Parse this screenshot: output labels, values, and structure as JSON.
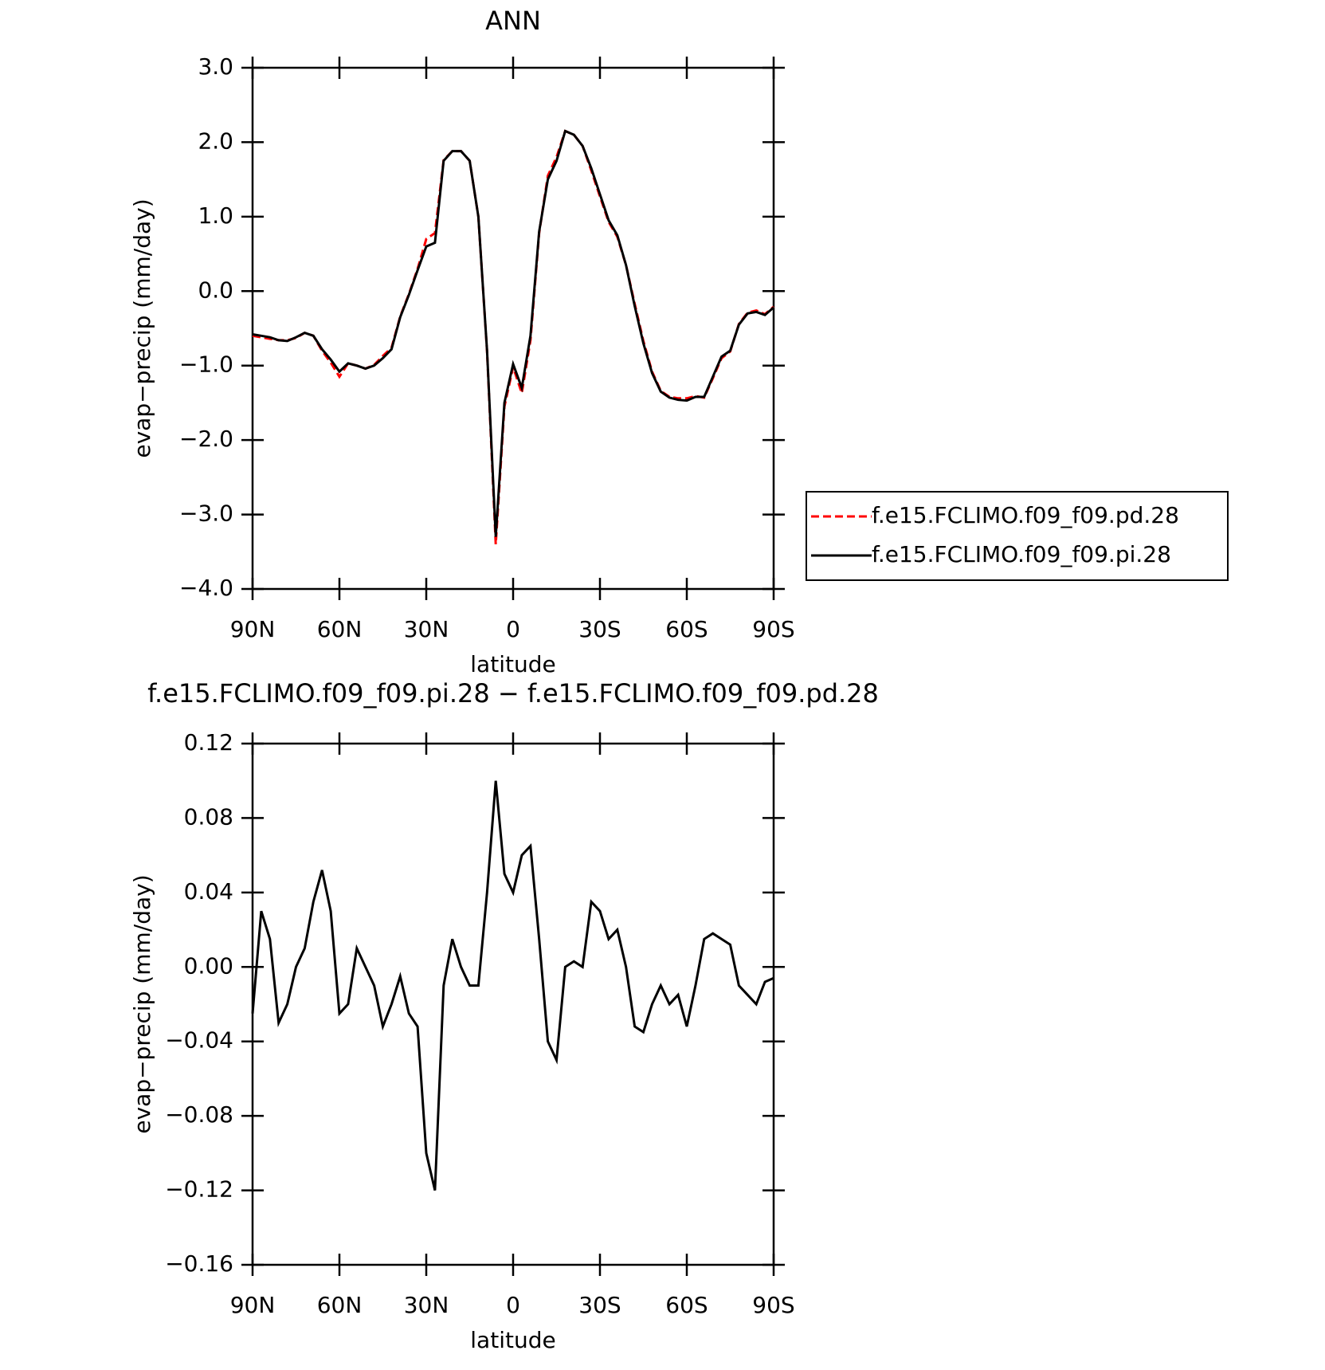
{
  "chart_data": [
    {
      "type": "line",
      "title": "ANN",
      "x_label": "latitude",
      "y_label": "evap−precip (mm/day)",
      "x": [
        90,
        87,
        84,
        81,
        78,
        75,
        72,
        69,
        66,
        63,
        60,
        57,
        54,
        51,
        48,
        45,
        42,
        39,
        36,
        33,
        30,
        27,
        24,
        21,
        18,
        15,
        12,
        9,
        6,
        3,
        0,
        -3,
        -6,
        -9,
        -12,
        -15,
        -18,
        -21,
        -24,
        -27,
        -30,
        -33,
        -36,
        -39,
        -42,
        -45,
        -48,
        -51,
        -54,
        -57,
        -60,
        -63,
        -66,
        -69,
        -72,
        -75,
        -78,
        -81,
        -84,
        -87,
        -90
      ],
      "xlim": [
        90,
        -90
      ],
      "xticks": [
        {
          "value": 90,
          "label": "90N"
        },
        {
          "value": 60,
          "label": "60N"
        },
        {
          "value": 30,
          "label": "30N"
        },
        0,
        {
          "value": -30,
          "label": "30S"
        },
        {
          "value": -60,
          "label": "60S"
        },
        {
          "value": -90,
          "label": "90S"
        }
      ],
      "ylim": [
        -4,
        3
      ],
      "yticks": [
        {
          "value": 3,
          "label": "3.0"
        },
        {
          "value": 2,
          "label": "2.0"
        },
        {
          "value": 1,
          "label": "1.0"
        },
        {
          "value": 0,
          "label": "0.0"
        },
        {
          "value": -1,
          "label": "−1.0"
        },
        {
          "value": -2,
          "label": "−2.0"
        },
        {
          "value": -3,
          "label": "−3.0"
        },
        {
          "value": -4,
          "label": "−4.0"
        }
      ],
      "legend": "right",
      "series": [
        {
          "name": "f.e15.FCLIMO.f09_f09.pd.28",
          "color": "#ff0000",
          "style": "dashed",
          "values": [
            -0.6,
            -0.62,
            -0.64,
            -0.66,
            -0.66,
            -0.63,
            -0.56,
            -0.6,
            -0.8,
            -0.96,
            -1.15,
            -0.97,
            -1.0,
            -1.04,
            -0.99,
            -0.87,
            -0.76,
            -0.34,
            -0.04,
            0.3,
            0.7,
            0.78,
            1.76,
            1.88,
            1.88,
            1.75,
            1.0,
            -0.81,
            -3.4,
            -1.55,
            -1.02,
            -1.37,
            -0.66,
            0.78,
            1.55,
            1.8,
            2.15,
            2.1,
            1.95,
            1.62,
            1.27,
            0.93,
            0.73,
            0.35,
            -0.17,
            -0.67,
            -1.08,
            -1.34,
            -1.42,
            -1.44,
            -1.44,
            -1.41,
            -1.43,
            -1.17,
            -0.9,
            -0.81,
            -0.44,
            -0.29,
            -0.26,
            -0.31,
            -0.21
          ]
        },
        {
          "name": "f.e15.FCLIMO.f09_f09.pi.28",
          "color": "#000000",
          "style": "solid",
          "values": [
            -0.58,
            -0.6,
            -0.62,
            -0.66,
            -0.67,
            -0.62,
            -0.56,
            -0.6,
            -0.78,
            -0.92,
            -1.08,
            -0.97,
            -1.0,
            -1.04,
            -1.0,
            -0.9,
            -0.78,
            -0.35,
            -0.05,
            0.28,
            0.6,
            0.65,
            1.75,
            1.88,
            1.88,
            1.75,
            1.0,
            -0.8,
            -3.3,
            -1.5,
            -0.98,
            -1.3,
            -0.6,
            0.8,
            1.5,
            1.75,
            2.15,
            2.1,
            1.95,
            1.65,
            1.3,
            0.95,
            0.75,
            0.35,
            -0.2,
            -0.7,
            -1.1,
            -1.35,
            -1.43,
            -1.46,
            -1.47,
            -1.42,
            -1.42,
            -1.15,
            -0.88,
            -0.8,
            -0.45,
            -0.3,
            -0.28,
            -0.32,
            -0.22
          ]
        }
      ]
    },
    {
      "type": "line",
      "title": "f.e15.FCLIMO.f09_f09.pi.28 − f.e15.FCLIMO.f09_f09.pd.28",
      "x_label": "latitude",
      "y_label": "evap−precip (mm/day)",
      "x": [
        90,
        87,
        84,
        81,
        78,
        75,
        72,
        69,
        66,
        63,
        60,
        57,
        54,
        51,
        48,
        45,
        42,
        39,
        36,
        33,
        30,
        27,
        24,
        21,
        18,
        15,
        12,
        9,
        6,
        3,
        0,
        -3,
        -6,
        -9,
        -12,
        -15,
        -18,
        -21,
        -24,
        -27,
        -30,
        -33,
        -36,
        -39,
        -42,
        -45,
        -48,
        -51,
        -54,
        -57,
        -60,
        -63,
        -66,
        -69,
        -72,
        -75,
        -78,
        -81,
        -84,
        -87,
        -90
      ],
      "xlim": [
        90,
        -90
      ],
      "xticks": [
        {
          "value": 90,
          "label": "90N"
        },
        {
          "value": 60,
          "label": "60N"
        },
        {
          "value": 30,
          "label": "30N"
        },
        0,
        {
          "value": -30,
          "label": "30S"
        },
        {
          "value": -60,
          "label": "60S"
        },
        {
          "value": -90,
          "label": "90S"
        }
      ],
      "ylim": [
        -0.16,
        0.12
      ],
      "yticks": [
        0.12,
        0.08,
        0.04,
        {
          "value": 0,
          "label": "0.00"
        },
        {
          "value": -0.04,
          "label": "−0.04"
        },
        {
          "value": -0.08,
          "label": "−0.08"
        },
        {
          "value": -0.12,
          "label": "−0.12"
        },
        {
          "value": -0.16,
          "label": "−0.16"
        }
      ],
      "series": [
        {
          "color": "#000000",
          "style": "solid",
          "values": [
            -0.025,
            0.03,
            0.015,
            -0.03,
            -0.02,
            0.0,
            0.01,
            0.035,
            0.052,
            0.03,
            -0.025,
            -0.02,
            0.01,
            0.0,
            -0.01,
            -0.032,
            -0.02,
            -0.005,
            -0.025,
            -0.032,
            -0.1,
            -0.12,
            -0.01,
            0.015,
            0.0,
            -0.01,
            -0.01,
            0.04,
            0.1,
            0.05,
            0.04,
            0.06,
            0.065,
            0.015,
            -0.04,
            -0.05,
            0.0,
            0.003,
            0.0,
            0.035,
            0.03,
            0.015,
            0.02,
            0.0,
            -0.032,
            -0.035,
            -0.02,
            -0.01,
            -0.02,
            -0.015,
            -0.032,
            -0.01,
            0.015,
            0.018,
            0.015,
            0.012,
            -0.01,
            -0.015,
            -0.02,
            -0.008,
            -0.006
          ]
        }
      ]
    }
  ]
}
